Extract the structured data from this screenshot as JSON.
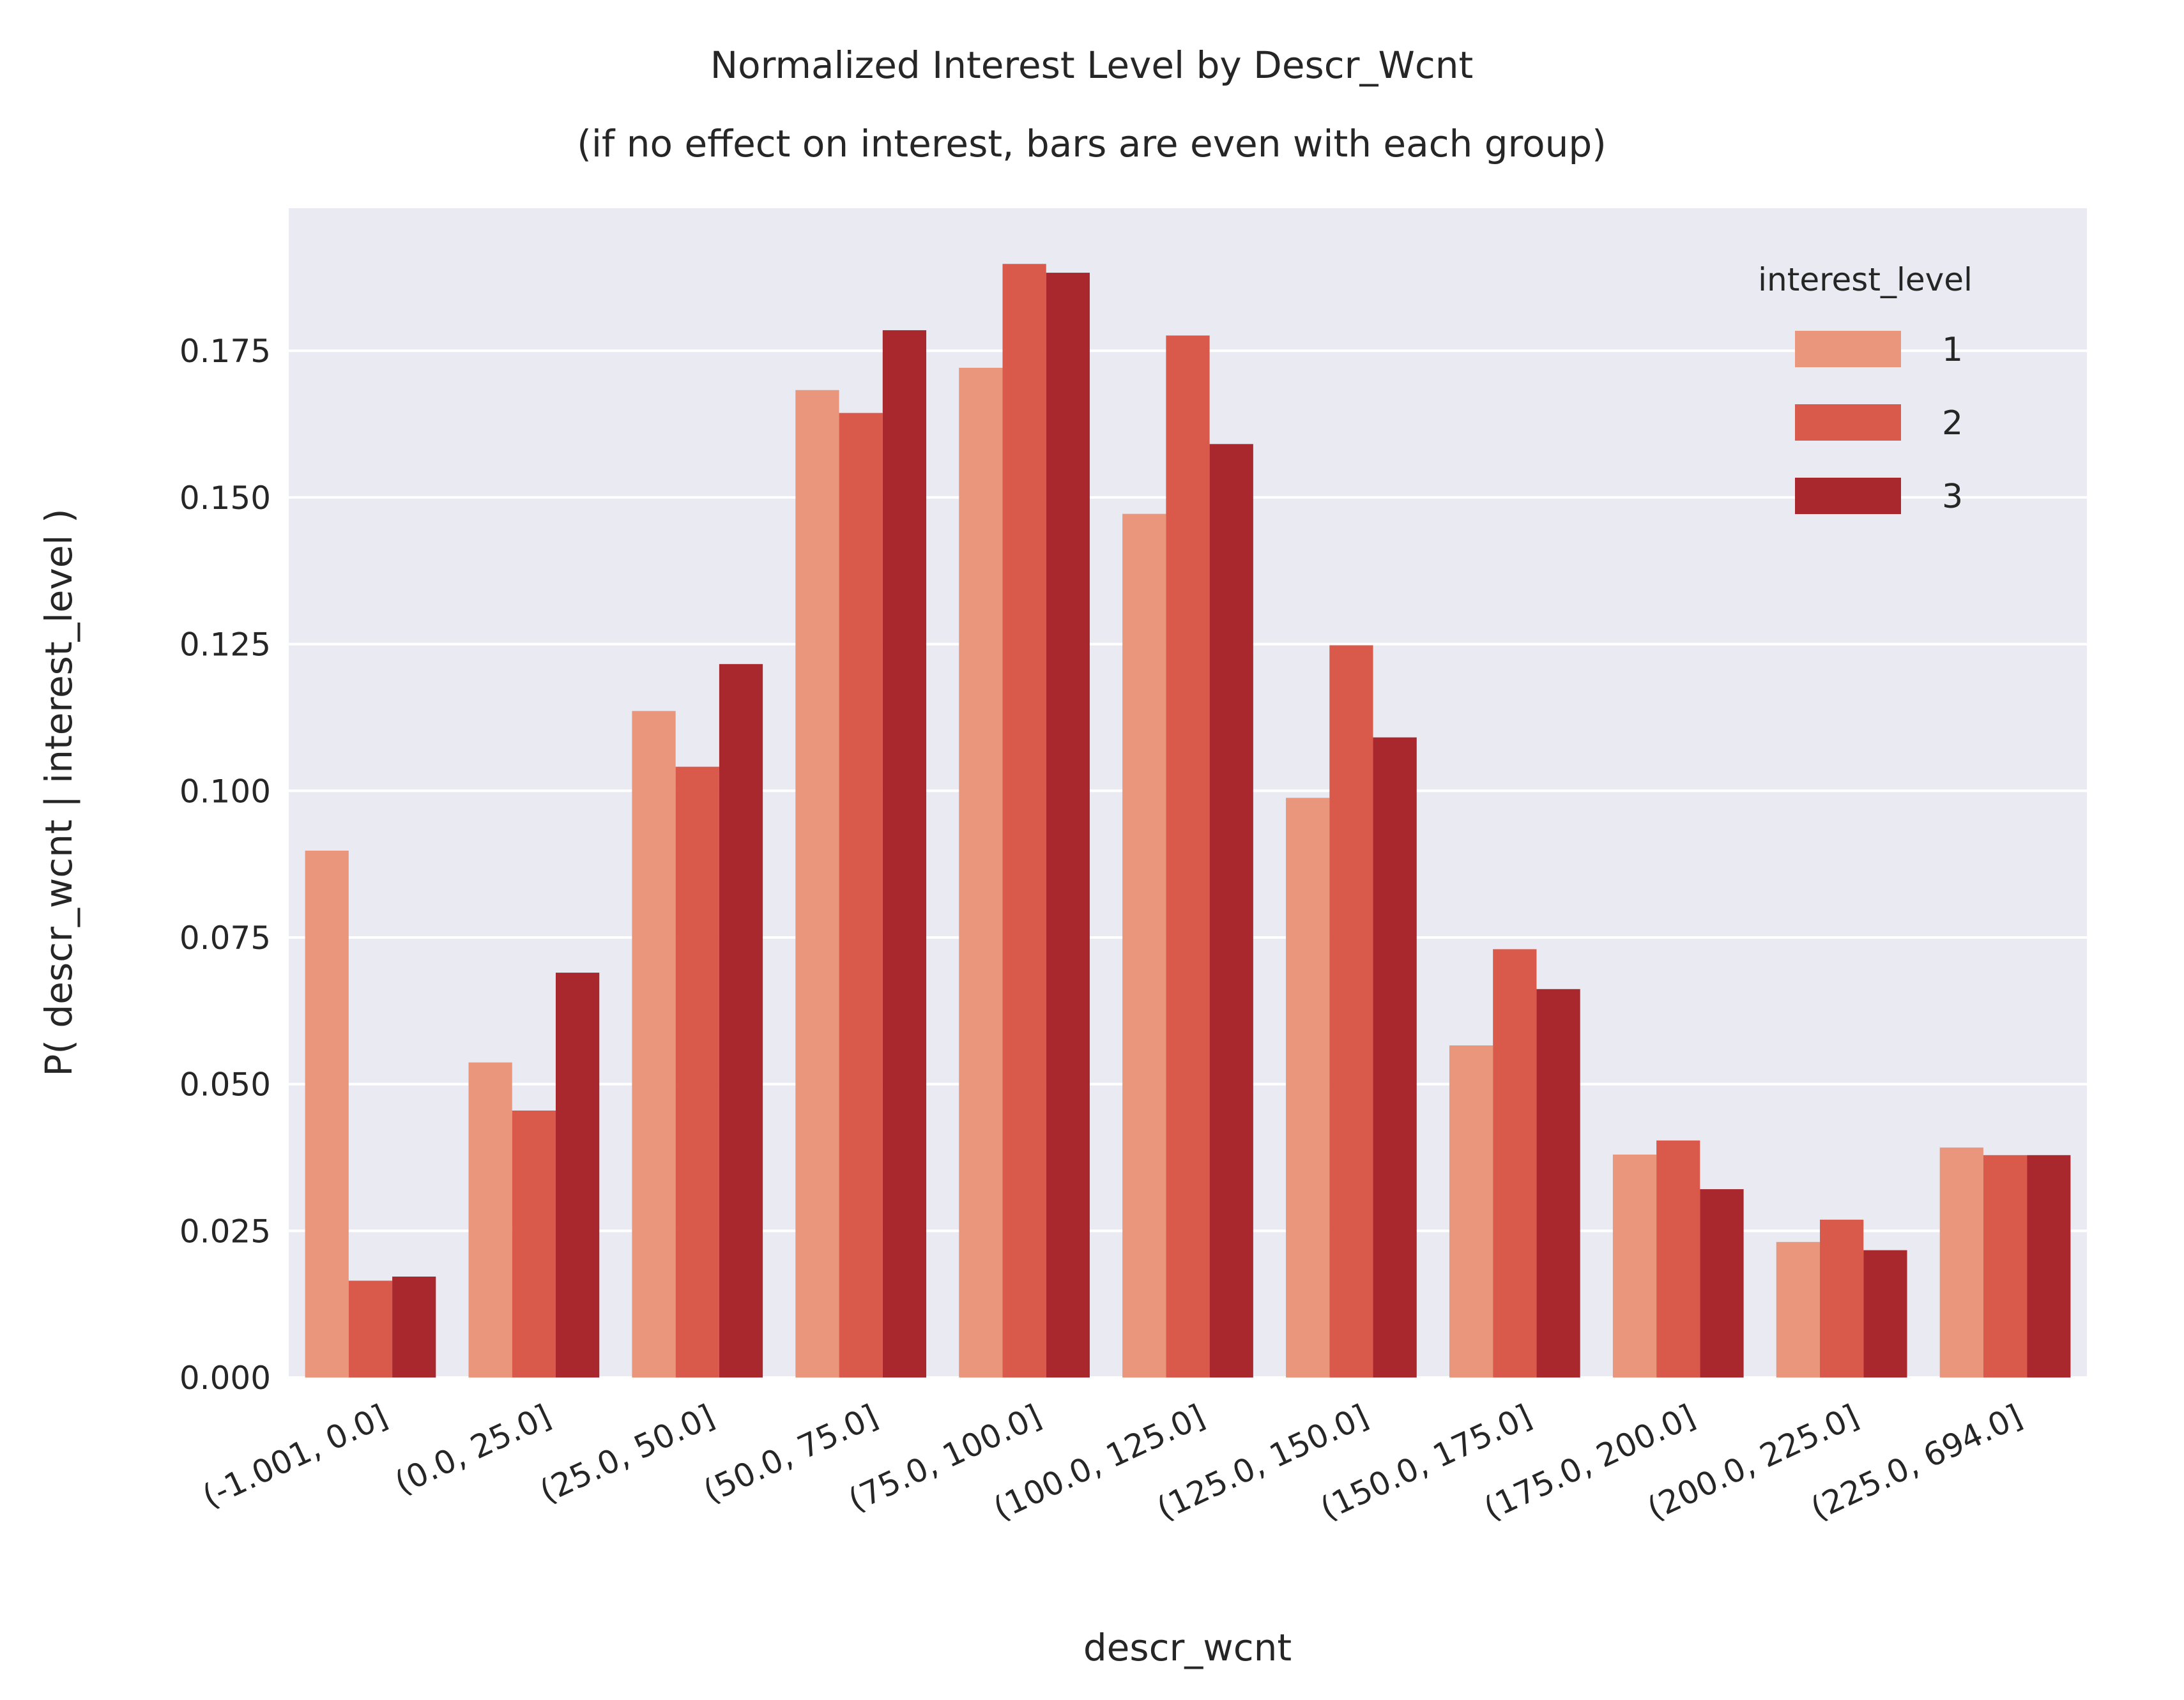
{
  "chart_data": {
    "type": "bar",
    "title": [
      "Normalized Interest Level by Descr_Wcnt",
      "(if no effect on interest, bars are even with each group)"
    ],
    "xlabel": "descr_wcnt",
    "ylabel": "P( descr_wcnt | interest_level )",
    "categories": [
      "(-1.001, 0.0]",
      "(0.0, 25.0]",
      "(25.0, 50.0]",
      "(50.0, 75.0]",
      "(75.0, 100.0]",
      "(100.0, 125.0]",
      "(125.0, 150.0]",
      "(150.0, 175.0]",
      "(175.0, 200.0]",
      "(200.0, 225.0]",
      "(225.0, 694.0]"
    ],
    "series": [
      {
        "name": "1",
        "color": "#ea967c",
        "values": [
          0.0898,
          0.0537,
          0.1136,
          0.1683,
          0.1721,
          0.1472,
          0.0988,
          0.0566,
          0.038,
          0.0231,
          0.0392
        ]
      },
      {
        "name": "2",
        "color": "#d9594b",
        "values": [
          0.0165,
          0.0455,
          0.1041,
          0.1644,
          0.1898,
          0.1776,
          0.1248,
          0.073,
          0.0404,
          0.0269,
          0.0379
        ]
      },
      {
        "name": "3",
        "color": "#a8282e",
        "values": [
          0.0172,
          0.069,
          0.1216,
          0.1785,
          0.1883,
          0.1591,
          0.1091,
          0.0662,
          0.0321,
          0.0217,
          0.0379
        ]
      }
    ],
    "ylim": [
      0,
      0.1993
    ],
    "yticks": [
      "0.000",
      "0.025",
      "0.050",
      "0.075",
      "0.100",
      "0.125",
      "0.150",
      "0.175"
    ],
    "grid": true,
    "legend": {
      "title": "interest_level",
      "position": "top-right"
    },
    "background": "#eaeaf2"
  }
}
